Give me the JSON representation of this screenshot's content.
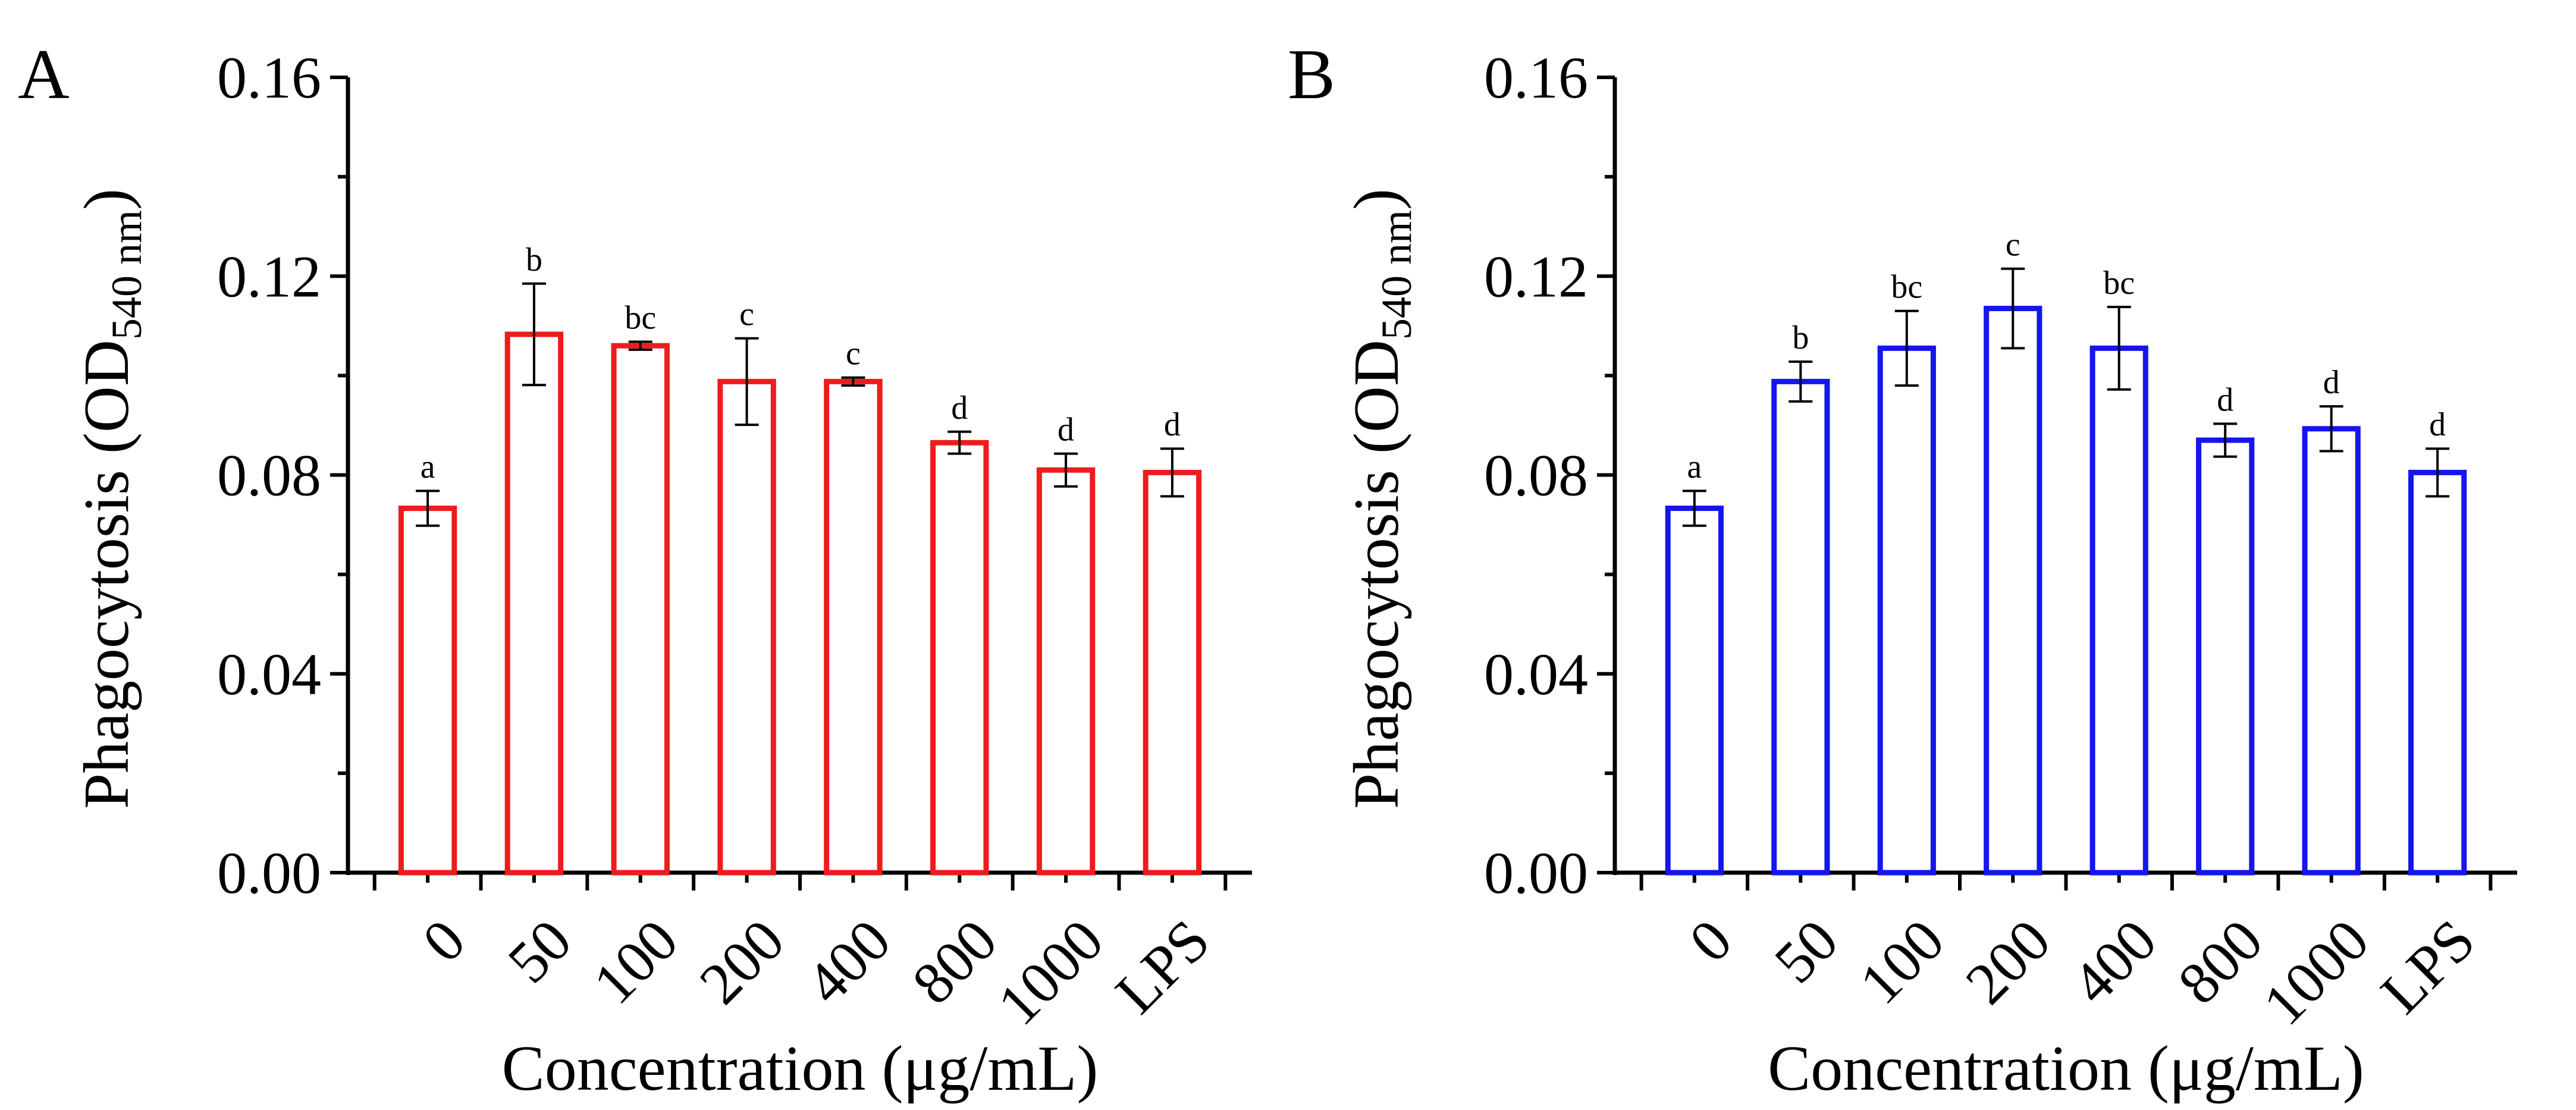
{
  "chart_data": [
    {
      "type": "bar",
      "panel": "A",
      "bar_color": "#ee1c1c",
      "ylabel_main": "Phagocytosis (OD",
      "ylabel_sub": "540 nm",
      "ylabel_close": ")",
      "xlabel": "Concentration (μg/mL)",
      "ylim": [
        0,
        0.16
      ],
      "yticks": [
        "0.00",
        "0.04",
        "0.08",
        "0.12",
        "0.16"
      ],
      "categories": [
        "0",
        "50",
        "100",
        "200",
        "400",
        "800",
        "1000",
        "LPS"
      ],
      "values": [
        0.0733,
        0.1083,
        0.106,
        0.0988,
        0.0988,
        0.0865,
        0.081,
        0.0805
      ],
      "errors": [
        0.0035,
        0.0102,
        0.0008,
        0.0087,
        0.0008,
        0.0022,
        0.0033,
        0.0048
      ],
      "sig_labels": [
        "a",
        "b",
        "bc",
        "c",
        "c",
        "d",
        "d",
        "d"
      ]
    },
    {
      "type": "bar",
      "panel": "B",
      "bar_color": "#1515ee",
      "ylabel_main": "Phagocytosis (OD",
      "ylabel_sub": "540 nm",
      "ylabel_close": ")",
      "xlabel": "Concentration (μg/mL)",
      "ylim": [
        0,
        0.16
      ],
      "yticks": [
        "0.00",
        "0.04",
        "0.08",
        "0.12",
        "0.16"
      ],
      "categories": [
        "0",
        "50",
        "100",
        "200",
        "400",
        "800",
        "1000",
        "LPS"
      ],
      "values": [
        0.0733,
        0.0988,
        0.1055,
        0.1135,
        0.1055,
        0.087,
        0.0893,
        0.0805
      ],
      "errors": [
        0.0035,
        0.004,
        0.0075,
        0.008,
        0.0083,
        0.0033,
        0.0045,
        0.0048
      ],
      "sig_labels": [
        "a",
        "b",
        "bc",
        "c",
        "bc",
        "d",
        "d",
        "d"
      ]
    }
  ]
}
